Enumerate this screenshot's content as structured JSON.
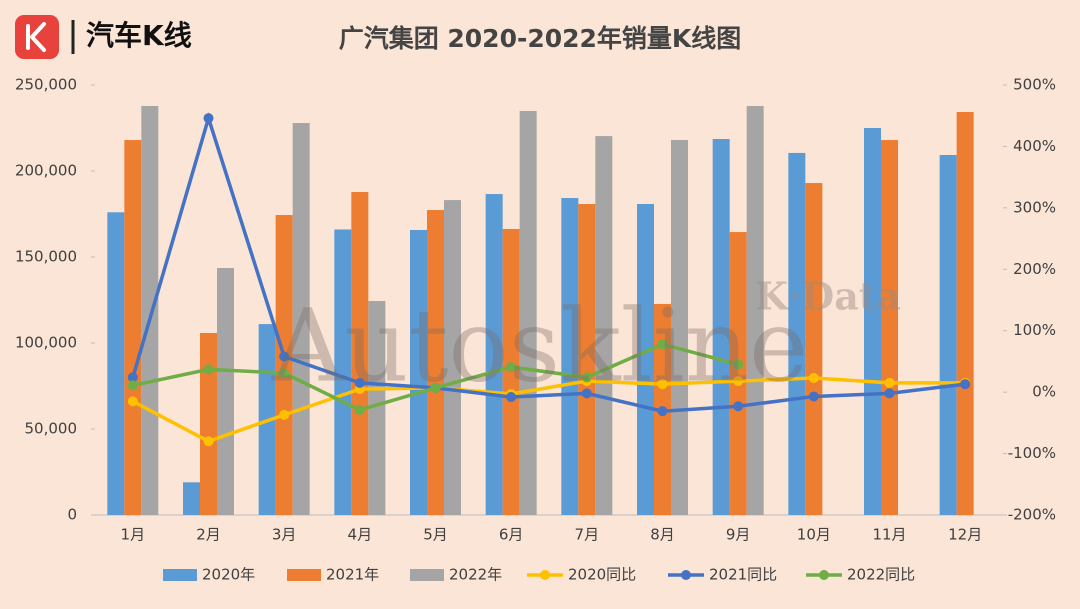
{
  "brand": "汽车K线",
  "watermark": {
    "main": "Autoskline",
    "sub": "K·Data"
  },
  "chart_data": {
    "type": "bar-line",
    "title": "广汽集团 2020-2022年销量K线图",
    "categories": [
      "1月",
      "2月",
      "3月",
      "4月",
      "5月",
      "6月",
      "7月",
      "8月",
      "9月",
      "10月",
      "11月",
      "12月"
    ],
    "series": [
      {
        "name": "2020年",
        "type": "bar",
        "color": "#5b9bd5",
        "values": [
          176000,
          19000,
          111000,
          166000,
          165700,
          186600,
          184300,
          180800,
          218600,
          210500,
          225000,
          209300
        ]
      },
      {
        "name": "2021年",
        "type": "bar",
        "color": "#ed7d31",
        "values": [
          218000,
          105800,
          174400,
          187800,
          177300,
          166300,
          180800,
          122700,
          164500,
          193000,
          218000,
          234300
        ]
      },
      {
        "name": "2022年",
        "type": "bar",
        "color": "#a5a5a5",
        "values": [
          237800,
          143600,
          227900,
          124400,
          183100,
          234900,
          220300,
          218000,
          237800,
          null,
          null,
          null
        ]
      },
      {
        "name": "2020同比",
        "type": "line",
        "axis": "y2",
        "color": "#ffc000",
        "values": [
          -15,
          -80,
          -37,
          5,
          7,
          -3,
          18,
          13,
          18,
          23,
          15,
          15
        ]
      },
      {
        "name": "2021同比",
        "type": "line",
        "axis": "y2",
        "color": "#4472c4",
        "values": [
          24,
          446,
          58,
          15,
          7,
          -8,
          -2,
          -31,
          -23,
          -7,
          -2,
          13
        ]
      },
      {
        "name": "2022同比",
        "type": "line",
        "axis": "y2",
        "color": "#70ad47",
        "values": [
          11,
          37,
          31,
          -29,
          7,
          41,
          24,
          78,
          45,
          null,
          null,
          null
        ]
      }
    ],
    "ylim": [
      0,
      250000
    ],
    "yticks": [
      0,
      {
        "value": 50000,
        "label": "50,000"
      },
      {
        "value": 100000,
        "label": "100,000"
      },
      {
        "value": 150000,
        "label": "150,000"
      },
      {
        "value": 200000,
        "label": "200,000"
      },
      {
        "value": 250000,
        "label": "250,000"
      }
    ],
    "y2lim": [
      -200,
      500
    ],
    "y2ticks": [
      {
        "value": -200,
        "label": "-200%"
      },
      {
        "value": -100,
        "label": "-100%"
      },
      {
        "value": 0,
        "label": "0%"
      },
      {
        "value": 100,
        "label": "100%"
      },
      {
        "value": 200,
        "label": "200%"
      },
      {
        "value": 300,
        "label": "300%"
      },
      {
        "value": 400,
        "label": "400%"
      },
      {
        "value": 500,
        "label": "500%"
      }
    ],
    "legend": "bottom"
  }
}
